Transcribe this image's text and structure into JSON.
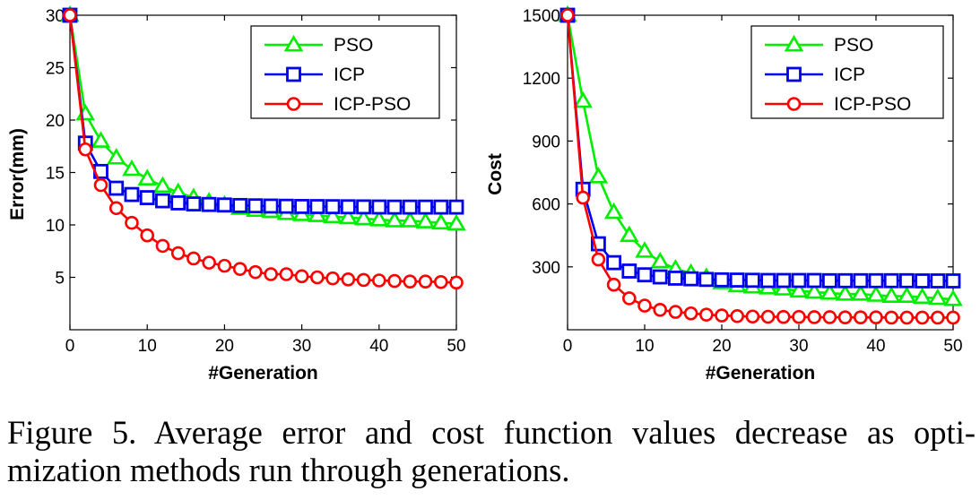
{
  "chart_data": [
    {
      "type": "line",
      "xlabel": "#Generation",
      "ylabel": "Error(mm)",
      "xlim": [
        0,
        50
      ],
      "ylim": [
        0,
        30
      ],
      "xticks": [
        0,
        10,
        20,
        30,
        40,
        50
      ],
      "yticks": [
        5,
        10,
        15,
        20,
        25,
        30
      ],
      "legend_position": "top-right",
      "grid": false,
      "x": [
        0,
        2,
        4,
        6,
        8,
        10,
        12,
        14,
        16,
        18,
        20,
        22,
        24,
        26,
        28,
        30,
        32,
        34,
        36,
        38,
        40,
        42,
        44,
        46,
        48,
        50
      ],
      "series": [
        {
          "name": "PSO",
          "color": "#00ee00",
          "marker": "triangle",
          "values": [
            30,
            20.6,
            18,
            16.4,
            15.3,
            14.4,
            13.7,
            13.1,
            12.6,
            12.2,
            11.9,
            11.6,
            11.4,
            11.3,
            11.1,
            11.0,
            10.9,
            10.8,
            10.7,
            10.6,
            10.5,
            10.4,
            10.4,
            10.3,
            10.2,
            10.1
          ]
        },
        {
          "name": "ICP",
          "color": "#0000ee",
          "marker": "square",
          "values": [
            30,
            17.8,
            15.1,
            13.5,
            12.9,
            12.6,
            12.3,
            12.1,
            12.0,
            11.95,
            11.9,
            11.85,
            11.82,
            11.8,
            11.78,
            11.76,
            11.75,
            11.74,
            11.73,
            11.72,
            11.71,
            11.7,
            11.7,
            11.7,
            11.7,
            11.7
          ]
        },
        {
          "name": "ICP-PSO",
          "color": "#ff0000",
          "marker": "circle",
          "values": [
            30,
            17.2,
            13.8,
            11.6,
            10.2,
            9.0,
            8.0,
            7.3,
            6.8,
            6.4,
            6.1,
            5.8,
            5.5,
            5.3,
            5.3,
            5.1,
            5.0,
            4.9,
            4.8,
            4.75,
            4.7,
            4.65,
            4.6,
            4.6,
            4.55,
            4.5
          ]
        }
      ]
    },
    {
      "type": "line",
      "xlabel": "#Generation",
      "ylabel": "Cost",
      "xlim": [
        0,
        50
      ],
      "ylim": [
        0,
        1500
      ],
      "xticks": [
        0,
        10,
        20,
        30,
        40,
        50
      ],
      "yticks": [
        300,
        600,
        900,
        1200,
        1500
      ],
      "legend_position": "top-right",
      "grid": false,
      "x": [
        0,
        2,
        4,
        6,
        8,
        10,
        12,
        14,
        16,
        18,
        20,
        22,
        24,
        26,
        28,
        30,
        32,
        34,
        36,
        38,
        40,
        42,
        44,
        46,
        48,
        50
      ],
      "series": [
        {
          "name": "PSO",
          "color": "#00ee00",
          "marker": "triangle",
          "values": [
            1500,
            1090,
            730,
            560,
            450,
            375,
            325,
            290,
            270,
            250,
            225,
            210,
            205,
            200,
            195,
            185,
            180,
            175,
            170,
            170,
            165,
            160,
            160,
            155,
            150,
            145
          ]
        },
        {
          "name": "ICP",
          "color": "#0000ee",
          "marker": "square",
          "values": [
            1500,
            670,
            410,
            320,
            280,
            262,
            252,
            246,
            243,
            240,
            238,
            237,
            236,
            235,
            235,
            235,
            235,
            234,
            234,
            234,
            234,
            234,
            234,
            233,
            233,
            233
          ]
        },
        {
          "name": "ICP-PSO",
          "color": "#ff0000",
          "marker": "circle",
          "values": [
            1500,
            630,
            335,
            215,
            150,
            115,
            95,
            85,
            78,
            72,
            68,
            65,
            63,
            62,
            61,
            61,
            60,
            60,
            59,
            59,
            59,
            58,
            58,
            58,
            58,
            58
          ]
        }
      ]
    }
  ],
  "caption": {
    "text": "Figure 5. Average error and cost function values decrease as opti-mization methods run through generations."
  }
}
